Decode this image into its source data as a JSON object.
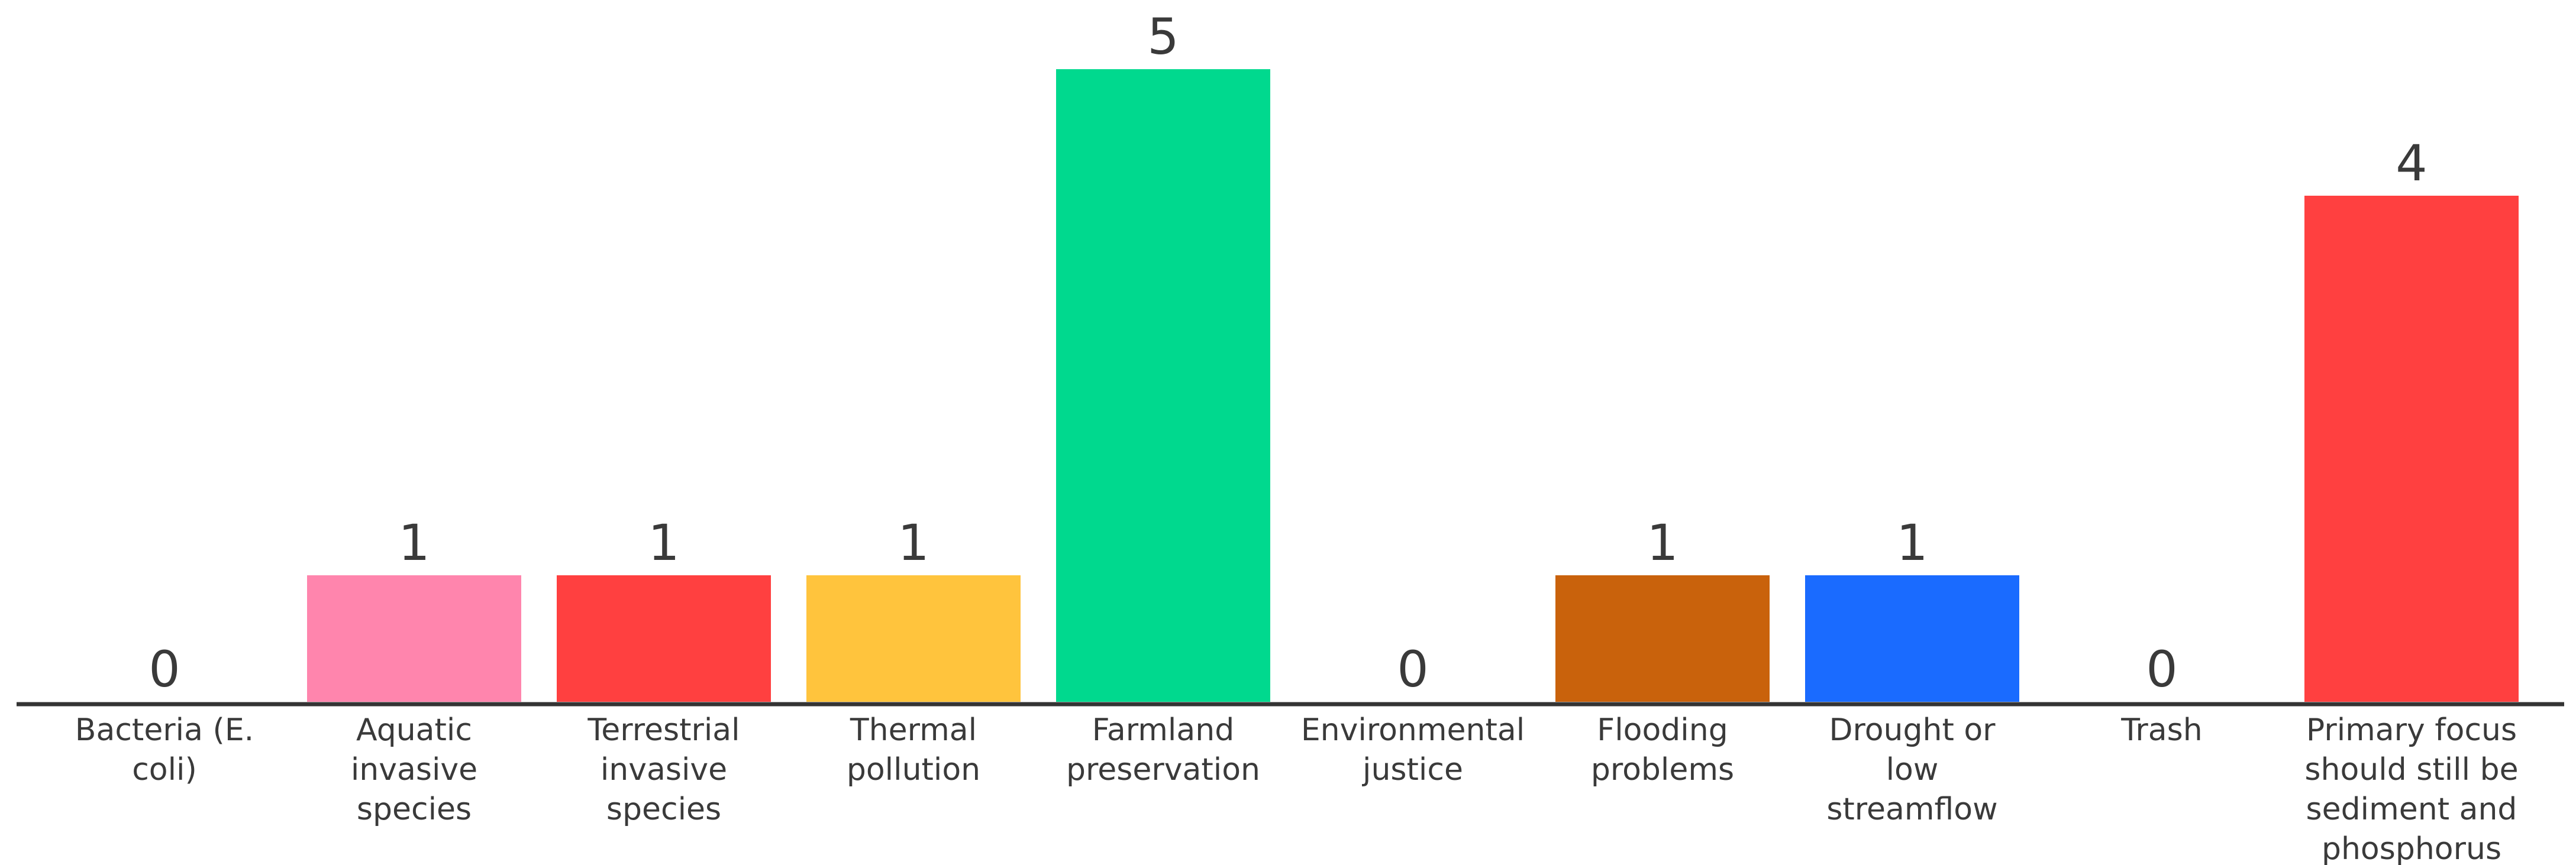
{
  "chart_data": {
    "type": "bar",
    "categories": [
      "Bacteria (E.\ncoli)",
      "Aquatic\ninvasive\nspecies",
      "Terrestrial\ninvasive\nspecies",
      "Thermal\npollution",
      "Farmland\npreservation",
      "Environmental\njustice",
      "Flooding\nproblems",
      "Drought or\nlow\nstreamflow",
      "Trash",
      "Primary focus\nshould still be\nsediment and\nphosphorus"
    ],
    "values": [
      0,
      1,
      1,
      1,
      5,
      0,
      1,
      1,
      0,
      4
    ],
    "colors": [
      null,
      "#ff85ad",
      "#ff4040",
      "#ffc43d",
      "#00d98e",
      null,
      "#c9620c",
      "#1a6bff",
      null,
      "#ff4040"
    ],
    "ylim": [
      0,
      5
    ]
  }
}
